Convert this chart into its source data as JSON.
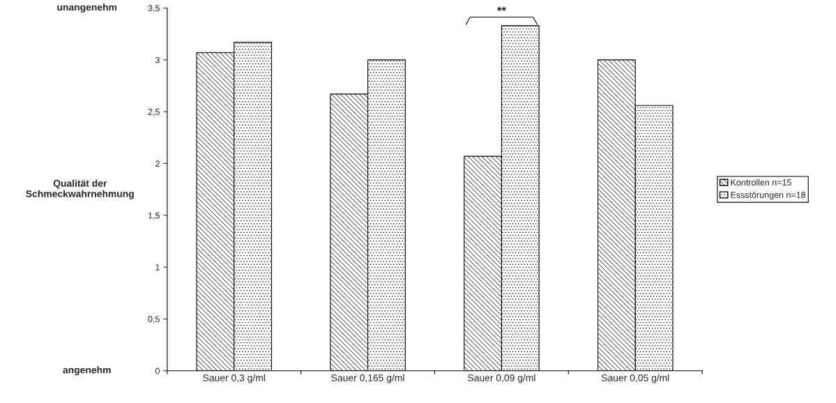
{
  "chart_data": {
    "type": "bar",
    "ylabel": "Qualität der\nSchmeckwahrnehmung",
    "categories": [
      "Sauer 0,3 g/ml",
      "Sauer 0,165 g/ml",
      "Sauer 0,09 g/ml",
      "Sauer 0,05 g/ml"
    ],
    "series": [
      {
        "name": "Kontrollen n=15",
        "color": "#000000",
        "values": [
          3.07,
          2.67,
          2.07,
          3.0
        ]
      },
      {
        "name": "Essstörungen n=18",
        "color": "#000000",
        "values": [
          3.17,
          3.0,
          3.33,
          2.56
        ]
      }
    ],
    "ylim": [
      0,
      3.5
    ],
    "yticks": [
      0,
      {
        "value": 0.5,
        "label": "0,5"
      },
      1,
      {
        "value": 1.5,
        "label": "1,5"
      },
      2,
      {
        "value": 2.5,
        "label": "2,5"
      },
      3,
      {
        "value": 3.5,
        "label": "3,5"
      }
    ],
    "annotations": [
      "unangenehm",
      "angenehm",
      "**"
    ],
    "grid": false,
    "legend": "right"
  }
}
